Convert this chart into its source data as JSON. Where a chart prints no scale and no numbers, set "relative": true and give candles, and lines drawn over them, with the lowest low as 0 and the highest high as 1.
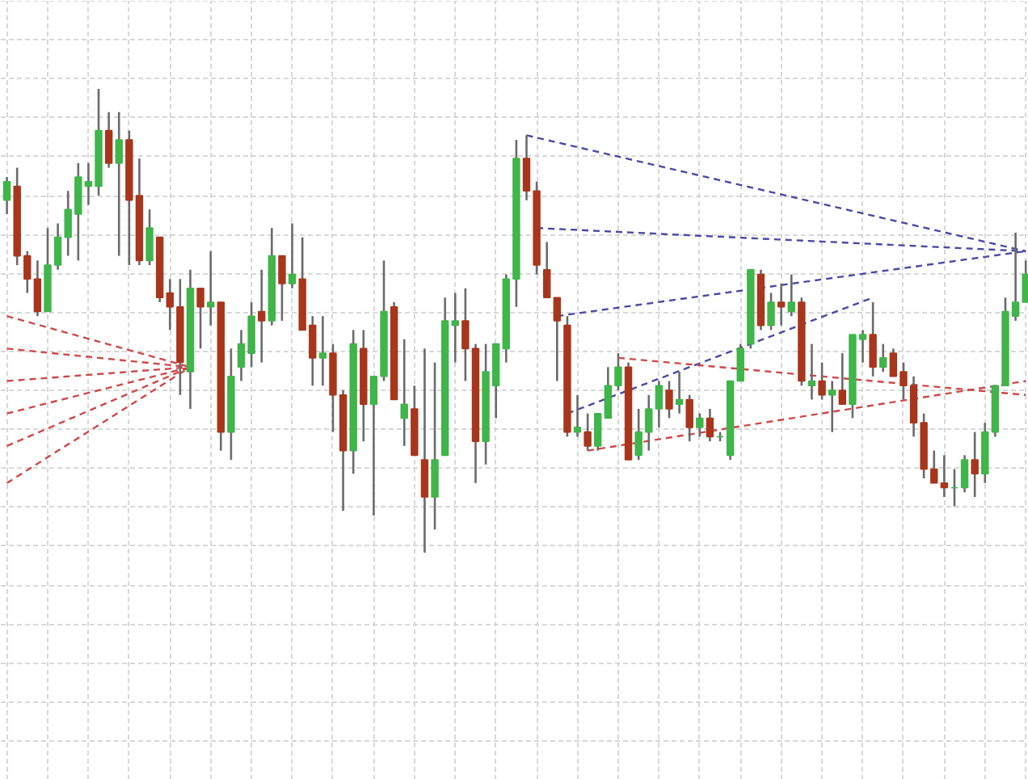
{
  "chart_data": {
    "type": "candlestick",
    "relative": true,
    "grid": true,
    "tick_labels": false,
    "categories": [
      null,
      null,
      null,
      null,
      null,
      null,
      null,
      null,
      null,
      null,
      null,
      null,
      null,
      null,
      null,
      null,
      null,
      null,
      null,
      null,
      null,
      null,
      null,
      null,
      null,
      null,
      null,
      null,
      null,
      null,
      null,
      null,
      null,
      null,
      null,
      null,
      null,
      null,
      null,
      null,
      null,
      null,
      null,
      null,
      null,
      null,
      null,
      null,
      null,
      null,
      null,
      null,
      null,
      null,
      null,
      null,
      null,
      null,
      null,
      null,
      null,
      null,
      null,
      null,
      null,
      null,
      null,
      null,
      null,
      null,
      null,
      null,
      null,
      null,
      null,
      null,
      null,
      null,
      null,
      null,
      null,
      null,
      null,
      null,
      null,
      null,
      null,
      null,
      null,
      null,
      null,
      null,
      null,
      null,
      null,
      null,
      null,
      null,
      null,
      null,
      null
    ],
    "ohlc": [
      [
        0.76,
        0.81,
        0.73,
        0.8
      ],
      [
        0.79,
        0.83,
        0.62,
        0.64
      ],
      [
        0.64,
        0.65,
        0.56,
        0.59
      ],
      [
        0.59,
        0.63,
        0.51,
        0.52
      ],
      [
        0.52,
        0.7,
        0.52,
        0.62
      ],
      [
        0.62,
        0.71,
        0.61,
        0.68
      ],
      [
        0.68,
        0.78,
        0.64,
        0.74
      ],
      [
        0.73,
        0.84,
        0.63,
        0.81
      ],
      [
        0.79,
        0.84,
        0.75,
        0.8
      ],
      [
        0.79,
        1.0,
        0.77,
        0.91
      ],
      [
        0.91,
        0.95,
        0.83,
        0.84
      ],
      [
        0.84,
        0.95,
        0.64,
        0.89
      ],
      [
        0.89,
        0.91,
        0.62,
        0.76
      ],
      [
        0.77,
        0.85,
        0.62,
        0.63
      ],
      [
        0.63,
        0.74,
        0.62,
        0.7
      ],
      [
        0.68,
        0.68,
        0.54,
        0.55
      ],
      [
        0.56,
        0.59,
        0.48,
        0.53
      ],
      [
        0.53,
        0.59,
        0.34,
        0.41
      ],
      [
        0.39,
        0.61,
        0.31,
        0.57
      ],
      [
        0.57,
        0.57,
        0.44,
        0.53
      ],
      [
        0.53,
        0.65,
        0.49,
        0.54
      ],
      [
        0.54,
        0.54,
        0.22,
        0.26
      ],
      [
        0.26,
        0.44,
        0.2,
        0.38
      ],
      [
        0.4,
        0.48,
        0.37,
        0.45
      ],
      [
        0.43,
        0.54,
        0.4,
        0.51
      ],
      [
        0.52,
        0.61,
        0.41,
        0.5
      ],
      [
        0.5,
        0.7,
        0.49,
        0.64
      ],
      [
        0.64,
        0.64,
        0.5,
        0.58
      ],
      [
        0.58,
        0.71,
        0.57,
        0.6
      ],
      [
        0.59,
        0.68,
        0.48,
        0.48
      ],
      [
        0.49,
        0.51,
        0.36,
        0.42
      ],
      [
        0.42,
        0.51,
        0.36,
        0.43
      ],
      [
        0.43,
        0.45,
        0.26,
        0.34
      ],
      [
        0.34,
        0.35,
        0.09,
        0.22
      ],
      [
        0.22,
        0.48,
        0.17,
        0.45
      ],
      [
        0.44,
        0.48,
        0.24,
        0.32
      ],
      [
        0.32,
        0.38,
        0.08,
        0.38
      ],
      [
        0.38,
        0.63,
        0.37,
        0.52
      ],
      [
        0.53,
        0.54,
        0.33,
        0.33
      ],
      [
        0.29,
        0.46,
        0.23,
        0.32
      ],
      [
        0.31,
        0.36,
        0.21,
        0.21
      ],
      [
        0.2,
        0.44,
        0.0,
        0.12
      ],
      [
        0.12,
        0.41,
        0.05,
        0.2
      ],
      [
        0.21,
        0.55,
        0.21,
        0.5
      ],
      [
        0.49,
        0.56,
        0.41,
        0.5
      ],
      [
        0.5,
        0.57,
        0.37,
        0.44
      ],
      [
        0.44,
        0.45,
        0.15,
        0.24
      ],
      [
        0.24,
        0.45,
        0.19,
        0.39
      ],
      [
        0.36,
        0.45,
        0.29,
        0.45
      ],
      [
        0.44,
        0.6,
        0.41,
        0.59
      ],
      [
        0.59,
        0.89,
        0.53,
        0.85
      ],
      [
        0.85,
        0.9,
        0.76,
        0.78
      ],
      [
        0.78,
        0.8,
        0.6,
        0.62
      ],
      [
        0.61,
        0.67,
        0.55,
        0.55
      ],
      [
        0.55,
        0.55,
        0.37,
        0.5
      ],
      [
        0.49,
        0.51,
        0.25,
        0.26
      ],
      [
        0.26,
        0.34,
        0.25,
        0.27
      ],
      [
        0.26,
        0.3,
        0.22,
        0.23
      ],
      [
        0.23,
        0.3,
        0.22,
        0.3
      ],
      [
        0.29,
        0.4,
        0.29,
        0.36
      ],
      [
        0.36,
        0.43,
        0.35,
        0.4
      ],
      [
        0.4,
        0.41,
        0.2,
        0.2
      ],
      [
        0.21,
        0.31,
        0.2,
        0.26
      ],
      [
        0.26,
        0.34,
        0.22,
        0.31
      ],
      [
        0.31,
        0.37,
        0.27,
        0.36
      ],
      [
        0.35,
        0.37,
        0.29,
        0.31
      ],
      [
        0.32,
        0.39,
        0.3,
        0.33
      ],
      [
        0.33,
        0.34,
        0.24,
        0.27
      ],
      [
        0.27,
        0.3,
        0.25,
        0.29
      ],
      [
        0.29,
        0.31,
        0.24,
        0.25
      ],
      [
        0.25,
        0.26,
        0.24,
        0.25
      ],
      [
        0.21,
        0.37,
        0.2,
        0.37
      ],
      [
        0.37,
        0.45,
        0.37,
        0.44
      ],
      [
        0.45,
        0.61,
        0.44,
        0.61
      ],
      [
        0.6,
        0.61,
        0.48,
        0.49
      ],
      [
        0.49,
        0.56,
        0.48,
        0.54
      ],
      [
        0.54,
        0.58,
        0.49,
        0.53
      ],
      [
        0.52,
        0.6,
        0.51,
        0.54
      ],
      [
        0.54,
        0.55,
        0.36,
        0.37
      ],
      [
        0.36,
        0.45,
        0.33,
        0.37
      ],
      [
        0.37,
        0.41,
        0.33,
        0.34
      ],
      [
        0.34,
        0.37,
        0.26,
        0.35
      ],
      [
        0.35,
        0.43,
        0.32,
        0.32
      ],
      [
        0.32,
        0.47,
        0.29,
        0.47
      ],
      [
        0.46,
        0.48,
        0.41,
        0.47
      ],
      [
        0.47,
        0.54,
        0.38,
        0.4
      ],
      [
        0.4,
        0.45,
        0.39,
        0.42
      ],
      [
        0.43,
        0.44,
        0.38,
        0.38
      ],
      [
        0.39,
        0.41,
        0.33,
        0.36
      ],
      [
        0.36,
        0.38,
        0.25,
        0.28
      ],
      [
        0.28,
        0.3,
        0.16,
        0.18
      ],
      [
        0.18,
        0.22,
        0.15,
        0.15
      ],
      [
        0.15,
        0.21,
        0.12,
        0.14
      ],
      [
        0.14,
        0.18,
        0.1,
        0.14
      ],
      [
        0.14,
        0.21,
        0.13,
        0.2
      ],
      [
        0.2,
        0.26,
        0.12,
        0.17
      ],
      [
        0.17,
        0.28,
        0.15,
        0.26
      ],
      [
        0.26,
        0.36,
        0.25,
        0.36
      ],
      [
        0.36,
        0.55,
        0.36,
        0.52
      ],
      [
        0.51,
        0.69,
        0.5,
        0.54
      ],
      [
        0.54,
        0.63,
        0.54,
        0.6
      ]
    ],
    "colors": [
      "#3fb54a",
      "#a8361c",
      "#a8361c",
      "#a8361c",
      "#3fb54a",
      "#3fb54a",
      "#3fb54a",
      "#3fb54a",
      "#3fb54a",
      "#3fb54a",
      "#a8361c",
      "#3fb54a",
      "#a8361c",
      "#a8361c",
      "#3fb54a",
      "#a8361c",
      "#a8361c",
      "#a8361c",
      "#3fb54a",
      "#a8361c",
      "#3fb54a",
      "#a8361c",
      "#3fb54a",
      "#3fb54a",
      "#3fb54a",
      "#a8361c",
      "#3fb54a",
      "#a8361c",
      "#3fb54a",
      "#a8361c",
      "#a8361c",
      "#3fb54a",
      "#a8361c",
      "#a8361c",
      "#3fb54a",
      "#a8361c",
      "#3fb54a",
      "#3fb54a",
      "#a8361c",
      "#3fb54a",
      "#a8361c",
      "#a8361c",
      "#3fb54a",
      "#3fb54a",
      "#3fb54a",
      "#a8361c",
      "#a8361c",
      "#3fb54a",
      "#3fb54a",
      "#3fb54a",
      "#3fb54a",
      "#a8361c",
      "#a8361c",
      "#a8361c",
      "#a8361c",
      "#a8361c",
      "#3fb54a",
      "#a8361c",
      "#3fb54a",
      "#3fb54a",
      "#3fb54a",
      "#a8361c",
      "#3fb54a",
      "#3fb54a",
      "#3fb54a",
      "#a8361c",
      "#3fb54a",
      "#a8361c",
      "#3fb54a",
      "#a8361c",
      "#3fb54a",
      "#3fb54a",
      "#3fb54a",
      "#3fb54a",
      "#a8361c",
      "#3fb54a",
      "#a8361c",
      "#3fb54a",
      "#a8361c",
      "#3fb54a",
      "#a8361c",
      "#3fb54a",
      "#a8361c",
      "#3fb54a",
      "#3fb54a",
      "#a8361c",
      "#3fb54a",
      "#a8361c",
      "#a8361c",
      "#a8361c",
      "#a8361c",
      "#a8361c",
      "#a8361c",
      "#3fb54a",
      "#3fb54a",
      "#a8361c",
      "#3fb54a",
      "#3fb54a",
      "#3fb54a",
      "#3fb54a",
      "#3fb54a"
    ],
    "series": [
      {
        "type": "line",
        "line_style": "dashed",
        "color": "#4a4aa8",
        "values": [
          null,
          null,
          null,
          null,
          null,
          null,
          null,
          null,
          null,
          null,
          null,
          null,
          null,
          null,
          null,
          null,
          null,
          null,
          null,
          null,
          null,
          null,
          null,
          null,
          null,
          null,
          null,
          null,
          null,
          null,
          null,
          null,
          null,
          null,
          null,
          null,
          null,
          null,
          null,
          null,
          null,
          null,
          null,
          null,
          null,
          null,
          null,
          null,
          null,
          null,
          null,
          0.9,
          null,
          null,
          null,
          null,
          null,
          null,
          null,
          null,
          null,
          null,
          null,
          null,
          null,
          null,
          null,
          null,
          null,
          null,
          null,
          null,
          null,
          null,
          null,
          null,
          null,
          null,
          null,
          null,
          null,
          null,
          null,
          null,
          null,
          null,
          null,
          null,
          null,
          null,
          null,
          null,
          null,
          null,
          null,
          null,
          null,
          null,
          null,
          null,
          0.65
        ]
      },
      {
        "type": "line",
        "line_style": "dashed",
        "color": "#4a4aa8",
        "values": [
          null,
          null,
          null,
          null,
          null,
          null,
          null,
          null,
          null,
          null,
          null,
          null,
          null,
          null,
          null,
          null,
          null,
          null,
          null,
          null,
          null,
          null,
          null,
          null,
          null,
          null,
          null,
          null,
          null,
          null,
          null,
          null,
          null,
          null,
          null,
          null,
          null,
          null,
          null,
          null,
          null,
          null,
          null,
          null,
          null,
          null,
          null,
          null,
          null,
          null,
          null,
          null,
          0.7,
          null,
          null,
          null,
          null,
          null,
          null,
          null,
          null,
          null,
          null,
          null,
          null,
          null,
          null,
          null,
          null,
          null,
          null,
          null,
          null,
          null,
          null,
          null,
          null,
          null,
          null,
          null,
          null,
          null,
          null,
          null,
          null,
          null,
          null,
          null,
          null,
          null,
          null,
          null,
          null,
          null,
          null,
          null,
          null,
          null,
          null,
          null,
          0.65
        ]
      },
      {
        "type": "line",
        "line_style": "dashed",
        "color": "#4a4aa8",
        "values": [
          null,
          null,
          null,
          null,
          null,
          null,
          null,
          null,
          null,
          null,
          null,
          null,
          null,
          null,
          null,
          null,
          null,
          null,
          null,
          null,
          null,
          null,
          null,
          null,
          null,
          null,
          null,
          null,
          null,
          null,
          null,
          null,
          null,
          null,
          null,
          null,
          null,
          null,
          null,
          null,
          null,
          null,
          null,
          null,
          null,
          null,
          null,
          null,
          null,
          null,
          null,
          null,
          null,
          null,
          0.51,
          null,
          null,
          null,
          null,
          null,
          null,
          null,
          null,
          null,
          null,
          null,
          null,
          null,
          null,
          null,
          null,
          null,
          null,
          null,
          null,
          null,
          null,
          null,
          null,
          null,
          null,
          null,
          null,
          null,
          null,
          null,
          null,
          null,
          null,
          null,
          null,
          null,
          null,
          null,
          null,
          null,
          null,
          null,
          null,
          null,
          0.65
        ]
      },
      {
        "type": "line",
        "line_style": "dashed",
        "color": "#4a4aa8",
        "values": [
          null,
          null,
          null,
          null,
          null,
          null,
          null,
          null,
          null,
          null,
          null,
          null,
          null,
          null,
          null,
          null,
          null,
          null,
          null,
          null,
          null,
          null,
          null,
          null,
          null,
          null,
          null,
          null,
          null,
          null,
          null,
          null,
          null,
          null,
          null,
          null,
          null,
          null,
          null,
          null,
          null,
          null,
          null,
          null,
          null,
          null,
          null,
          null,
          null,
          null,
          null,
          null,
          null,
          null,
          null,
          0.3,
          null,
          null,
          null,
          null,
          null,
          null,
          null,
          null,
          null,
          null,
          null,
          null,
          null,
          null,
          null,
          null,
          null,
          null,
          null,
          null,
          null,
          null,
          null,
          null,
          null,
          null,
          null,
          null,
          null,
          0.55,
          null,
          null,
          null,
          null,
          null,
          null,
          null,
          null,
          null,
          null,
          null,
          null,
          null,
          null,
          null
        ]
      },
      {
        "type": "line",
        "line_style": "dashed",
        "color": "#d04848",
        "values": [
          0.51,
          null,
          null,
          null,
          null,
          null,
          null,
          null,
          null,
          null,
          null,
          null,
          null,
          null,
          null,
          null,
          null,
          null,
          0.4,
          null,
          null,
          null,
          null,
          null,
          null,
          null,
          null,
          null,
          null,
          null,
          null,
          null,
          null,
          null,
          null,
          null,
          null,
          null,
          null,
          null,
          null,
          null,
          null,
          null,
          null,
          null,
          null,
          null,
          null,
          null,
          null,
          null,
          null,
          null,
          null,
          null,
          null,
          null,
          null,
          null,
          null,
          null,
          null,
          null,
          null,
          null,
          null,
          null,
          null,
          null,
          null,
          null,
          null,
          null,
          null,
          null,
          null,
          null,
          null,
          null,
          null,
          null,
          null,
          null,
          null,
          null,
          null,
          null,
          null,
          null,
          null,
          null,
          null,
          null,
          null,
          null,
          null,
          null,
          null,
          null,
          null
        ]
      },
      {
        "type": "line",
        "line_style": "dashed",
        "color": "#d04848",
        "values": [
          0.44,
          null,
          null,
          null,
          null,
          null,
          null,
          null,
          null,
          null,
          null,
          null,
          null,
          null,
          null,
          null,
          null,
          null,
          0.4,
          null,
          null,
          null,
          null,
          null,
          null,
          null,
          null,
          null,
          null,
          null,
          null,
          null,
          null,
          null,
          null,
          null,
          null,
          null,
          null,
          null,
          null,
          null,
          null,
          null,
          null,
          null,
          null,
          null,
          null,
          null,
          null,
          null,
          null,
          null,
          null,
          null,
          null,
          null,
          null,
          null,
          null,
          null,
          null,
          null,
          null,
          null,
          null,
          null,
          null,
          null,
          null,
          null,
          null,
          null,
          null,
          null,
          null,
          null,
          null,
          null,
          null,
          null,
          null,
          null,
          null,
          null,
          null,
          null,
          null,
          null,
          null,
          null,
          null,
          null,
          null,
          null,
          null,
          null,
          null,
          null,
          null
        ]
      },
      {
        "type": "line",
        "line_style": "dashed",
        "color": "#d04848",
        "values": [
          0.37,
          null,
          null,
          null,
          null,
          null,
          null,
          null,
          null,
          null,
          null,
          null,
          null,
          null,
          null,
          null,
          null,
          null,
          0.4,
          null,
          null,
          null,
          null,
          null,
          null,
          null,
          null,
          null,
          null,
          null,
          null,
          null,
          null,
          null,
          null,
          null,
          null,
          null,
          null,
          null,
          null,
          null,
          null,
          null,
          null,
          null,
          null,
          null,
          null,
          null,
          null,
          null,
          null,
          null,
          null,
          null,
          null,
          null,
          null,
          null,
          null,
          null,
          null,
          null,
          null,
          null,
          null,
          null,
          null,
          null,
          null,
          null,
          null,
          null,
          null,
          null,
          null,
          null,
          null,
          null,
          null,
          null,
          null,
          null,
          null,
          null,
          null,
          null,
          null,
          null,
          null,
          null,
          null,
          null,
          null,
          null,
          null,
          null,
          null,
          null,
          null
        ]
      },
      {
        "type": "line",
        "line_style": "dashed",
        "color": "#d04848",
        "values": [
          0.3,
          null,
          null,
          null,
          null,
          null,
          null,
          null,
          null,
          null,
          null,
          null,
          null,
          null,
          null,
          null,
          null,
          null,
          0.4,
          null,
          null,
          null,
          null,
          null,
          null,
          null,
          null,
          null,
          null,
          null,
          null,
          null,
          null,
          null,
          null,
          null,
          null,
          null,
          null,
          null,
          null,
          null,
          null,
          null,
          null,
          null,
          null,
          null,
          null,
          null,
          null,
          null,
          null,
          null,
          null,
          null,
          null,
          null,
          null,
          null,
          null,
          null,
          null,
          null,
          null,
          null,
          null,
          null,
          null,
          null,
          null,
          null,
          null,
          null,
          null,
          null,
          null,
          null,
          null,
          null,
          null,
          null,
          null,
          null,
          null,
          null,
          null,
          null,
          null,
          null,
          null,
          null,
          null,
          null,
          null,
          null,
          null,
          null,
          null,
          null,
          null
        ]
      },
      {
        "type": "line",
        "line_style": "dashed",
        "color": "#d04848",
        "values": [
          0.23,
          null,
          null,
          null,
          null,
          null,
          null,
          null,
          null,
          null,
          null,
          null,
          null,
          null,
          null,
          null,
          null,
          null,
          0.4,
          null,
          null,
          null,
          null,
          null,
          null,
          null,
          null,
          null,
          null,
          null,
          null,
          null,
          null,
          null,
          null,
          null,
          null,
          null,
          null,
          null,
          null,
          null,
          null,
          null,
          null,
          null,
          null,
          null,
          null,
          null,
          null,
          null,
          null,
          null,
          null,
          null,
          null,
          null,
          null,
          null,
          null,
          null,
          null,
          null,
          null,
          null,
          null,
          null,
          null,
          null,
          null,
          null,
          null,
          null,
          null,
          null,
          null,
          null,
          null,
          null,
          null,
          null,
          null,
          null,
          null,
          null,
          null,
          null,
          null,
          null,
          null,
          null,
          null,
          null,
          null,
          null,
          null,
          null,
          null,
          null,
          null
        ]
      },
      {
        "type": "line",
        "line_style": "dashed",
        "color": "#d04848",
        "values": [
          0.15,
          null,
          null,
          null,
          null,
          null,
          null,
          null,
          null,
          null,
          null,
          null,
          null,
          null,
          null,
          null,
          null,
          null,
          0.4,
          null,
          null,
          null,
          null,
          null,
          null,
          null,
          null,
          null,
          null,
          null,
          null,
          null,
          null,
          null,
          null,
          null,
          null,
          null,
          null,
          null,
          null,
          null,
          null,
          null,
          null,
          null,
          null,
          null,
          null,
          null,
          null,
          null,
          null,
          null,
          null,
          null,
          null,
          null,
          null,
          null,
          null,
          null,
          null,
          null,
          null,
          null,
          null,
          null,
          null,
          null,
          null,
          null,
          null,
          null,
          null,
          null,
          null,
          null,
          null,
          null,
          null,
          null,
          null,
          null,
          null,
          null,
          null,
          null,
          null,
          null,
          null,
          null,
          null,
          null,
          null,
          null,
          null,
          null,
          null,
          null,
          null
        ]
      },
      {
        "type": "line",
        "line_style": "dashed",
        "color": "#d04848",
        "values": [
          null,
          null,
          null,
          null,
          null,
          null,
          null,
          null,
          null,
          null,
          null,
          null,
          null,
          null,
          null,
          null,
          null,
          null,
          null,
          null,
          null,
          null,
          null,
          null,
          null,
          null,
          null,
          null,
          null,
          null,
          null,
          null,
          null,
          null,
          null,
          null,
          null,
          null,
          null,
          null,
          null,
          null,
          null,
          null,
          null,
          null,
          null,
          null,
          null,
          null,
          null,
          null,
          null,
          null,
          null,
          null,
          null,
          null,
          null,
          null,
          0.42,
          null,
          null,
          null,
          null,
          null,
          null,
          null,
          null,
          null,
          null,
          null,
          null,
          null,
          null,
          null,
          null,
          null,
          null,
          null,
          null,
          null,
          null,
          null,
          null,
          null,
          null,
          null,
          null,
          null,
          null,
          null,
          null,
          null,
          null,
          null,
          null,
          null,
          null,
          null,
          0.34
        ]
      },
      {
        "type": "line",
        "line_style": "dashed",
        "color": "#d04848",
        "values": [
          null,
          null,
          null,
          null,
          null,
          null,
          null,
          null,
          null,
          null,
          null,
          null,
          null,
          null,
          null,
          null,
          null,
          null,
          null,
          null,
          null,
          null,
          null,
          null,
          null,
          null,
          null,
          null,
          null,
          null,
          null,
          null,
          null,
          null,
          null,
          null,
          null,
          null,
          null,
          null,
          null,
          null,
          null,
          null,
          null,
          null,
          null,
          null,
          null,
          null,
          null,
          null,
          null,
          null,
          null,
          null,
          null,
          0.22,
          null,
          null,
          null,
          null,
          null,
          null,
          null,
          null,
          null,
          null,
          null,
          null,
          null,
          null,
          null,
          null,
          null,
          null,
          null,
          null,
          null,
          null,
          null,
          null,
          null,
          null,
          null,
          null,
          null,
          null,
          null,
          null,
          null,
          null,
          null,
          null,
          null,
          null,
          null,
          null,
          null,
          null,
          0.37
        ]
      }
    ]
  }
}
